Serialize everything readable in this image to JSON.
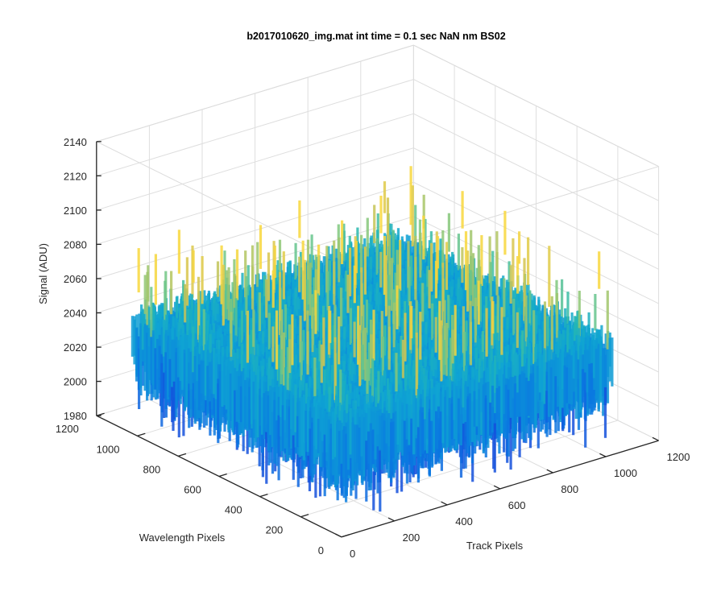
{
  "chart_data": {
    "type": "surface",
    "title": "b2017010620_img.mat int time = 0.1 sec  NaN nm BS02",
    "xlabel": "Track Pixels",
    "ylabel": "Wavelength Pixels",
    "zlabel": "Signal (ADU)",
    "xlim": [
      0,
      1200
    ],
    "ylim": [
      0,
      1200
    ],
    "zlim": [
      1980,
      2140
    ],
    "x_ticks": [
      "0",
      "200",
      "400",
      "600",
      "800",
      "1000",
      "1200"
    ],
    "y_ticks": [
      "0",
      "200",
      "400",
      "600",
      "800",
      "1000",
      "1200"
    ],
    "z_ticks": [
      "1980",
      "2000",
      "2020",
      "2040",
      "2060",
      "2080",
      "2100",
      "2120",
      "2140"
    ],
    "x_data_range": [
      0,
      1024
    ],
    "y_data_range": [
      0,
      1024
    ],
    "mean_signal": 2045,
    "signal_range": [
      1995,
      2125
    ],
    "colormap": "parula",
    "colors": {
      "low": "#0a6ad8",
      "mid": "#12a8c8",
      "high": "#e6c84a"
    },
    "grid": true
  }
}
